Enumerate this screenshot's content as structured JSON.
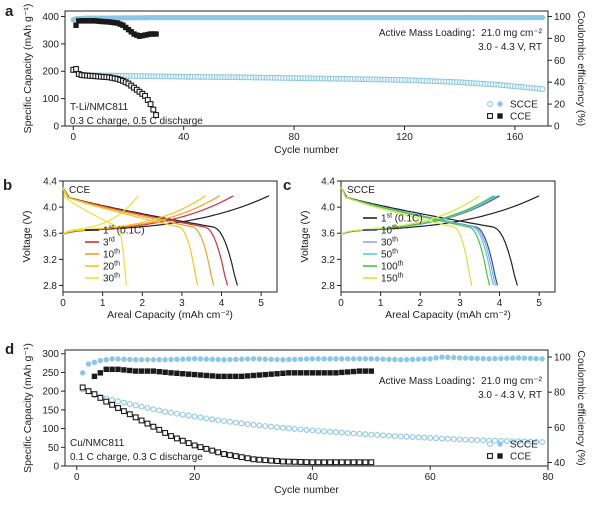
{
  "chart_data": [
    {
      "id": "a",
      "panel_letter": "a",
      "type": "scatter",
      "xlabel": "Cycle number",
      "ylabel": "Specific Capacity (mAh g⁻¹)",
      "y2label": "Coulombic efficiency (%)",
      "xlim": [
        -3,
        172
      ],
      "ylim": [
        0,
        420
      ],
      "y2lim": [
        0,
        105
      ],
      "xticks": [
        0,
        40,
        80,
        120,
        160
      ],
      "yticks": [
        0,
        100,
        200,
        300,
        400
      ],
      "y2ticks": [
        0,
        20,
        40,
        60,
        80,
        100
      ],
      "annotation_lines": [
        "Active Mass Loading：21.0 mg cm⁻²",
        "3.0 - 4.3 V, RT"
      ],
      "cell_lines": [
        "T-Li/NMC811",
        "0.3 C charge, 0.5 C discharge"
      ],
      "legend": {
        "position": "bottom-right",
        "items": [
          {
            "name": "SCCE",
            "color": "#8cc8e6"
          },
          {
            "name": "CCE",
            "color": "#1a1a1a"
          }
        ]
      },
      "series": [
        {
          "name": "SCCE",
          "quantity": "capacity",
          "axis": "left",
          "marker": "open-circle",
          "color": "#8cc8e6",
          "x": [
            0,
            1,
            2,
            3,
            5,
            10,
            20,
            40,
            60,
            80,
            100,
            120,
            140,
            155,
            165,
            170
          ],
          "y": [
            205,
            210,
            190,
            188,
            186,
            185,
            183,
            180,
            178,
            175,
            172,
            168,
            160,
            150,
            140,
            135
          ]
        },
        {
          "name": "SCCE",
          "quantity": "efficiency",
          "axis": "right",
          "marker": "filled-circle",
          "color": "#8cc8e6",
          "x": [
            0,
            1,
            2,
            5,
            10,
            30,
            60,
            90,
            120,
            150,
            170
          ],
          "y": [
            97,
            98,
            98,
            98.5,
            98.5,
            99,
            99,
            99,
            99,
            99,
            99
          ]
        },
        {
          "name": "CCE",
          "quantity": "capacity",
          "axis": "left",
          "marker": "open-square",
          "color": "#1a1a1a",
          "x": [
            0,
            1,
            2,
            3,
            5,
            8,
            10,
            13,
            16,
            18,
            20,
            22,
            24,
            26,
            28,
            29,
            30
          ],
          "y": [
            205,
            208,
            190,
            186,
            184,
            182,
            180,
            178,
            172,
            165,
            155,
            140,
            125,
            110,
            80,
            60,
            40
          ]
        },
        {
          "name": "CCE",
          "quantity": "efficiency",
          "axis": "right",
          "marker": "filled-square",
          "color": "#1a1a1a",
          "x": [
            1,
            2,
            3,
            5,
            8,
            10,
            13,
            16,
            18,
            20,
            22,
            24,
            26,
            28,
            30
          ],
          "y": [
            92,
            96,
            96,
            96,
            96,
            95.5,
            95,
            94,
            92,
            88,
            84,
            82,
            83,
            84,
            84
          ]
        }
      ]
    },
    {
      "id": "b",
      "panel_letter": "b",
      "type": "line",
      "title": "CCE",
      "xlabel": "Areal Capacity (mAh cm⁻²)",
      "ylabel": "Voltage (V)",
      "xlim": [
        0,
        5.4
      ],
      "ylim": [
        2.7,
        4.4
      ],
      "xticks": [
        0,
        1,
        2,
        3,
        4,
        5
      ],
      "yticks": [
        2.8,
        3.2,
        3.6,
        4.0,
        4.4
      ],
      "legend": {
        "position": "bottom-left",
        "items": [
          {
            "name": "1st (0.1C)",
            "base": "1",
            "sup": "st",
            "suffix": " (0.1C)",
            "color": "#222222"
          },
          {
            "name": "3rd",
            "base": "3",
            "sup": "rd",
            "suffix": "",
            "color": "#d6303a"
          },
          {
            "name": "10th",
            "base": "10",
            "sup": "th",
            "suffix": "",
            "color": "#f0a030"
          },
          {
            "name": "20th",
            "base": "20",
            "sup": "th",
            "suffix": "",
            "color": "#f5c518"
          },
          {
            "name": "30th",
            "base": "30",
            "sup": "th",
            "suffix": "",
            "color": "#e8e23a"
          }
        ]
      },
      "series": [
        {
          "name": "1st (0.1C)",
          "color": "#222222",
          "capacity": 5.2,
          "discharge_capacity": 4.4
        },
        {
          "name": "3rd",
          "color": "#d6303a",
          "capacity": 4.3,
          "discharge_capacity": 4.15
        },
        {
          "name": "10th",
          "color": "#f0a030",
          "capacity": 3.95,
          "discharge_capacity": 3.8
        },
        {
          "name": "20th",
          "color": "#f5c518",
          "capacity": 3.6,
          "discharge_capacity": 3.4
        },
        {
          "name": "30th",
          "color": "#e8e23a",
          "capacity": 1.9,
          "discharge_capacity": 1.6
        }
      ]
    },
    {
      "id": "c",
      "panel_letter": "c",
      "type": "line",
      "title": "SCCE",
      "xlabel": "Areal Capacity (mAh cm⁻²)",
      "ylabel": "Voltage (V)",
      "xlim": [
        0,
        5.4
      ],
      "ylim": [
        2.7,
        4.4
      ],
      "xticks": [
        0,
        1,
        2,
        3,
        4,
        5
      ],
      "yticks": [
        2.8,
        3.2,
        3.6,
        4.0,
        4.4
      ],
      "legend": {
        "position": "bottom-left",
        "items": [
          {
            "name": "1st (0.1C)",
            "base": "1",
            "sup": "st",
            "suffix": " (0.1C)",
            "color": "#222222"
          },
          {
            "name": "10th",
            "base": "10",
            "sup": "th",
            "suffix": "",
            "color": "#2a4fa8"
          },
          {
            "name": "30th",
            "base": "30",
            "sup": "th",
            "suffix": "",
            "color": "#8fa8e0"
          },
          {
            "name": "50th",
            "base": "50",
            "sup": "th",
            "suffix": "",
            "color": "#5ec8e8"
          },
          {
            "name": "100th",
            "base": "100",
            "sup": "th",
            "suffix": "",
            "color": "#44c63c"
          },
          {
            "name": "150th",
            "base": "150",
            "sup": "th",
            "suffix": "",
            "color": "#d6e43a"
          }
        ]
      },
      "series": [
        {
          "name": "1st (0.1C)",
          "color": "#222222",
          "capacity": 5.0,
          "discharge_capacity": 4.45
        },
        {
          "name": "10th",
          "color": "#2a4fa8",
          "capacity": 4.0,
          "discharge_capacity": 3.95
        },
        {
          "name": "30th",
          "color": "#8fa8e0",
          "capacity": 3.95,
          "discharge_capacity": 3.9
        },
        {
          "name": "50th",
          "color": "#5ec8e8",
          "capacity": 3.9,
          "discharge_capacity": 3.85
        },
        {
          "name": "100th",
          "color": "#44c63c",
          "capacity": 3.85,
          "discharge_capacity": 3.75
        },
        {
          "name": "150th",
          "color": "#d6e43a",
          "capacity": 3.5,
          "discharge_capacity": 3.3
        }
      ]
    },
    {
      "id": "d",
      "panel_letter": "d",
      "type": "scatter",
      "xlabel": "Cycle number",
      "ylabel": "Specific Capacity (mAh g⁻¹)",
      "y2label": "Coulombic efficiency (%)",
      "xlim": [
        -2,
        80
      ],
      "ylim": [
        0,
        310
      ],
      "y2lim": [
        38,
        104
      ],
      "xticks": [
        0,
        20,
        40,
        60,
        80
      ],
      "yticks": [
        0,
        50,
        100,
        150,
        200,
        250,
        300
      ],
      "y2ticks": [
        40,
        60,
        80,
        100
      ],
      "annotation_lines": [
        "Active Mass Loading：21.0 mg cm⁻²",
        "3.0 - 4.3 V, RT"
      ],
      "cell_lines": [
        "Cu/NMC811",
        "0.1 C charge, 0.3 C discharge"
      ],
      "legend": {
        "position": "bottom-right",
        "items": [
          {
            "name": "SCCE",
            "color": "#8cc8e6"
          },
          {
            "name": "CCE",
            "color": "#1a1a1a"
          }
        ]
      },
      "series": [
        {
          "name": "SCCE",
          "quantity": "capacity",
          "axis": "left",
          "marker": "open-circle",
          "color": "#8cc8e6",
          "x": [
            1,
            2,
            3,
            5,
            10,
            15,
            20,
            25,
            30,
            35,
            40,
            45,
            50,
            55,
            60,
            65,
            70,
            75,
            79
          ],
          "y": [
            205,
            200,
            190,
            180,
            162,
            145,
            132,
            120,
            110,
            102,
            95,
            89,
            84,
            79,
            75,
            71,
            68,
            66,
            64
          ]
        },
        {
          "name": "SCCE",
          "quantity": "efficiency",
          "axis": "right",
          "marker": "filled-circle",
          "color": "#8cc8e6",
          "x": [
            1,
            2,
            4,
            6,
            10,
            15,
            20,
            25,
            30,
            35,
            40,
            45,
            50,
            55,
            60,
            62,
            65,
            70,
            75,
            79
          ],
          "y": [
            91,
            96,
            98,
            99,
            98.5,
            98.5,
            99,
            98.5,
            99,
            98.5,
            99,
            99,
            99,
            98.5,
            99,
            100,
            99.5,
            99,
            99.5,
            99
          ]
        },
        {
          "name": "CCE",
          "quantity": "capacity",
          "axis": "left",
          "marker": "open-square",
          "color": "#1a1a1a",
          "x": [
            1,
            2,
            3,
            4,
            5,
            7,
            10,
            13,
            16,
            20,
            25,
            30,
            35,
            40,
            45,
            50
          ],
          "y": [
            210,
            200,
            192,
            182,
            172,
            155,
            130,
            105,
            80,
            55,
            32,
            18,
            12,
            10,
            10,
            10
          ]
        },
        {
          "name": "CCE",
          "quantity": "efficiency",
          "axis": "right",
          "marker": "filled-square",
          "color": "#1a1a1a",
          "x": [
            3,
            5,
            7,
            10,
            13,
            16,
            20,
            24,
            28,
            32,
            36,
            40,
            44,
            48,
            50
          ],
          "y": [
            89,
            93,
            93,
            92,
            92,
            91,
            90,
            89,
            89,
            90,
            91,
            91,
            91,
            92,
            92
          ]
        }
      ]
    }
  ]
}
